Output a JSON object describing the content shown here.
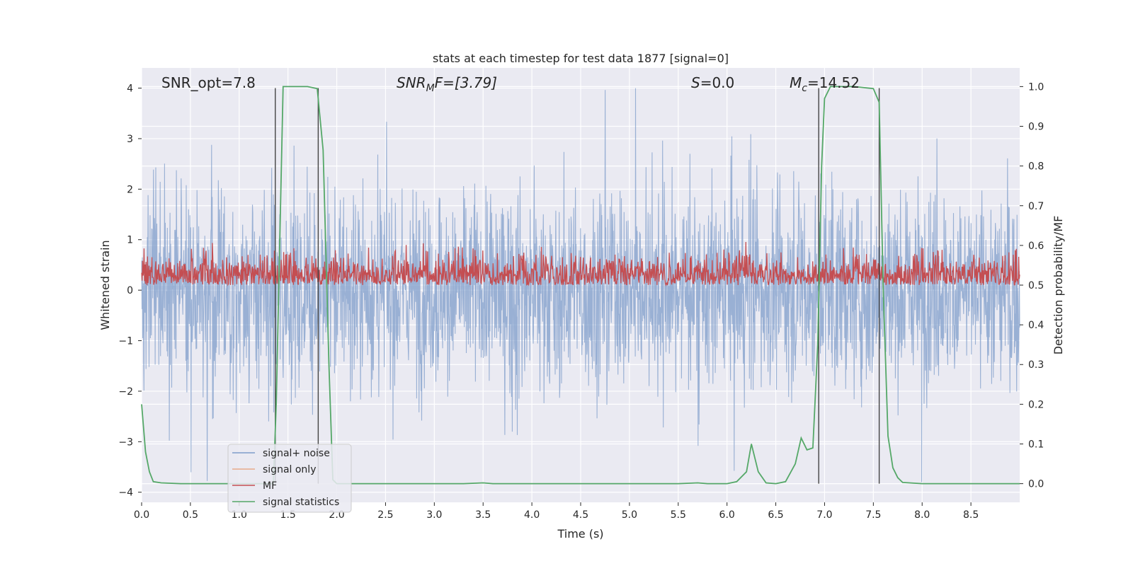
{
  "chart_data": {
    "type": "line",
    "title": "stats at each timestep for test data 1877 [signal=0]",
    "xlabel": "Time (s)",
    "ylabel": "Whitened strain",
    "ylabel_right": "Detection probability/MF",
    "xlim": [
      0.0,
      9.0
    ],
    "ylim": [
      -4.2,
      4.4
    ],
    "ylim_right": [
      -0.047,
      1.047
    ],
    "x_ticks": [
      "0.0",
      "0.5",
      "1.0",
      "1.5",
      "2.0",
      "2.5",
      "3.0",
      "3.5",
      "4.0",
      "4.5",
      "5.0",
      "5.5",
      "6.0",
      "6.5",
      "7.0",
      "7.5",
      "8.0",
      "8.5"
    ],
    "y_ticks": [
      "4",
      "3",
      "2",
      "1",
      "0",
      "−1",
      "−2",
      "−3",
      "−4"
    ],
    "y_ticks_right": [
      "1.0",
      "0.9",
      "0.8",
      "0.7",
      "0.6",
      "0.5",
      "0.4",
      "0.3",
      "0.2",
      "0.1",
      "0.0"
    ],
    "grid": true,
    "legend_position": "lower-left",
    "annotations": {
      "snr_opt": "SNR_opt=7.8",
      "snr_mf_base": "SNR",
      "snr_mf_sub": "M",
      "snr_mf_rest": "F=[3.79]",
      "s_sym": "S",
      "s_val": "=0.0",
      "mc_sym": "M",
      "mc_sub": "c",
      "mc_val": "=14.52"
    },
    "series": [
      {
        "name": "signal+ noise",
        "color": "#7e9cca",
        "axis": "left",
        "description_values": {
          "center": 0.0,
          "typical_envelope": 2.0,
          "peak_max": 4.0,
          "peak_min": -3.8
        }
      },
      {
        "name": "signal only",
        "color": "#e8a98a",
        "axis": "left",
        "values": []
      },
      {
        "name": "MF",
        "color": "#c44e52",
        "axis": "right",
        "description_values": {
          "baseline": 0.5,
          "typical_max": 0.6,
          "peak_max": 0.62
        }
      },
      {
        "name": "signal statistics",
        "color": "#55a868",
        "axis": "right",
        "x": [
          0.0,
          0.04,
          0.08,
          0.12,
          0.2,
          0.4,
          0.6,
          0.8,
          1.0,
          1.2,
          1.35,
          1.38,
          1.45,
          1.5,
          1.6,
          1.7,
          1.8,
          1.86,
          1.92,
          1.96,
          2.0,
          2.5,
          3.0,
          3.3,
          3.5,
          3.6,
          4.0,
          4.5,
          5.0,
          5.5,
          5.7,
          5.8,
          6.0,
          6.1,
          6.2,
          6.25,
          6.32,
          6.4,
          6.5,
          6.6,
          6.7,
          6.76,
          6.82,
          6.88,
          6.93,
          6.97,
          7.0,
          7.06,
          7.15,
          7.3,
          7.5,
          7.56,
          7.6,
          7.65,
          7.7,
          7.75,
          7.8,
          8.0,
          8.5,
          9.0
        ],
        "y": [
          0.2,
          0.08,
          0.03,
          0.005,
          0.002,
          0.0,
          0.0,
          0.0,
          0.0,
          0.0,
          0.0,
          0.2,
          1.0,
          1.0,
          1.0,
          1.0,
          0.995,
          0.84,
          0.3,
          0.01,
          0.0,
          0.0,
          0.0,
          0.0,
          0.002,
          0.0,
          0.0,
          0.0,
          0.0,
          0.0,
          0.002,
          0.0,
          0.0,
          0.005,
          0.03,
          0.1,
          0.03,
          0.002,
          0.0,
          0.005,
          0.05,
          0.115,
          0.085,
          0.09,
          0.35,
          0.8,
          0.97,
          1.0,
          1.0,
          1.0,
          0.995,
          0.96,
          0.5,
          0.12,
          0.04,
          0.015,
          0.003,
          0.0,
          0.0,
          0.0
        ]
      }
    ],
    "vertical_lines": [
      1.37,
      1.81,
      6.94,
      7.56
    ],
    "vertical_line_color": "#444444"
  }
}
